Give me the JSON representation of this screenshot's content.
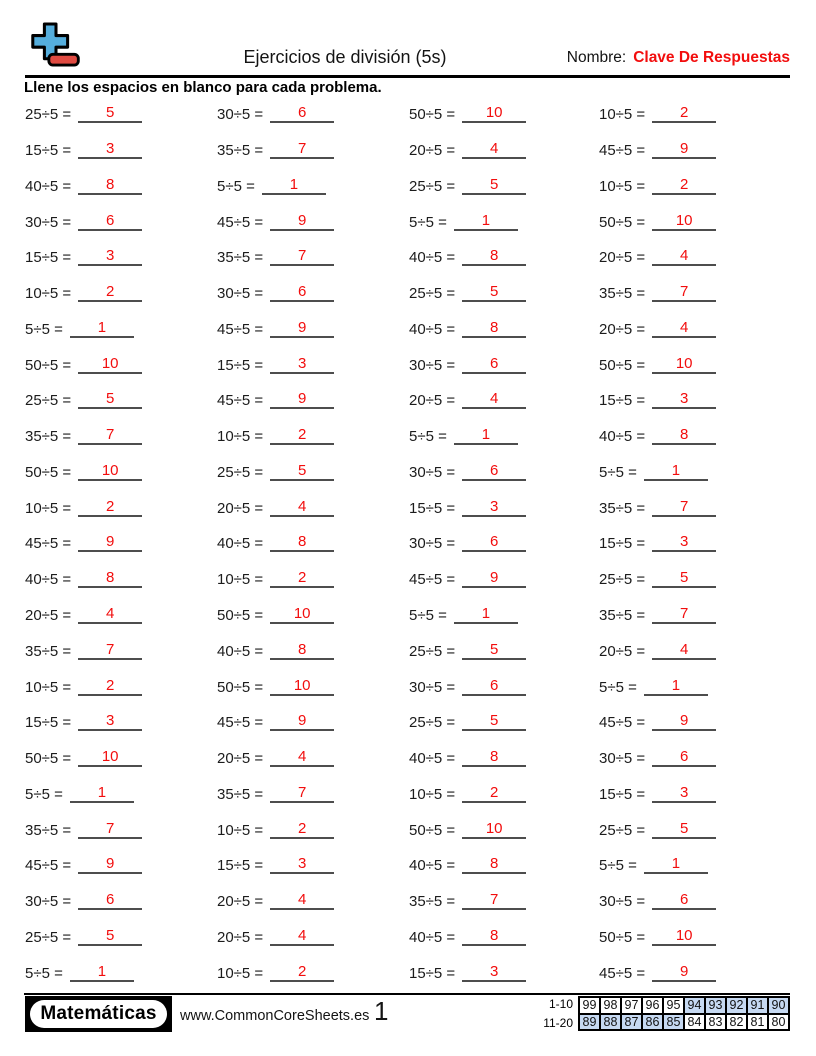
{
  "header": {
    "title": "Ejercicios de división (5s)",
    "name_label": "Nombre:",
    "name_value": "Clave De Respuestas",
    "instruction": "Llene los espacios en blanco para cada problema."
  },
  "problems": {
    "columns": [
      [
        [
          "25÷5 =",
          "5"
        ],
        [
          "15÷5 =",
          "3"
        ],
        [
          "40÷5 =",
          "8"
        ],
        [
          "30÷5 =",
          "6"
        ],
        [
          "15÷5 =",
          "3"
        ],
        [
          "10÷5 =",
          "2"
        ],
        [
          "5÷5 =",
          "1"
        ],
        [
          "50÷5 =",
          "10"
        ],
        [
          "25÷5 =",
          "5"
        ],
        [
          "35÷5 =",
          "7"
        ],
        [
          "50÷5 =",
          "10"
        ],
        [
          "10÷5 =",
          "2"
        ],
        [
          "45÷5 =",
          "9"
        ],
        [
          "40÷5 =",
          "8"
        ],
        [
          "20÷5 =",
          "4"
        ],
        [
          "35÷5 =",
          "7"
        ],
        [
          "10÷5 =",
          "2"
        ],
        [
          "15÷5 =",
          "3"
        ],
        [
          "50÷5 =",
          "10"
        ],
        [
          "5÷5 =",
          "1"
        ],
        [
          "35÷5 =",
          "7"
        ],
        [
          "45÷5 =",
          "9"
        ],
        [
          "30÷5 =",
          "6"
        ],
        [
          "25÷5 =",
          "5"
        ],
        [
          "5÷5 =",
          "1"
        ]
      ],
      [
        [
          "30÷5 =",
          "6"
        ],
        [
          "35÷5 =",
          "7"
        ],
        [
          "5÷5 =",
          "1"
        ],
        [
          "45÷5 =",
          "9"
        ],
        [
          "35÷5 =",
          "7"
        ],
        [
          "30÷5 =",
          "6"
        ],
        [
          "45÷5 =",
          "9"
        ],
        [
          "15÷5 =",
          "3"
        ],
        [
          "45÷5 =",
          "9"
        ],
        [
          "10÷5 =",
          "2"
        ],
        [
          "25÷5 =",
          "5"
        ],
        [
          "20÷5 =",
          "4"
        ],
        [
          "40÷5 =",
          "8"
        ],
        [
          "10÷5 =",
          "2"
        ],
        [
          "50÷5 =",
          "10"
        ],
        [
          "40÷5 =",
          "8"
        ],
        [
          "50÷5 =",
          "10"
        ],
        [
          "45÷5 =",
          "9"
        ],
        [
          "20÷5 =",
          "4"
        ],
        [
          "35÷5 =",
          "7"
        ],
        [
          "10÷5 =",
          "2"
        ],
        [
          "15÷5 =",
          "3"
        ],
        [
          "20÷5 =",
          "4"
        ],
        [
          "20÷5 =",
          "4"
        ],
        [
          "10÷5 =",
          "2"
        ]
      ],
      [
        [
          "50÷5 =",
          "10"
        ],
        [
          "20÷5 =",
          "4"
        ],
        [
          "25÷5 =",
          "5"
        ],
        [
          "5÷5 =",
          "1"
        ],
        [
          "40÷5 =",
          "8"
        ],
        [
          "25÷5 =",
          "5"
        ],
        [
          "40÷5 =",
          "8"
        ],
        [
          "30÷5 =",
          "6"
        ],
        [
          "20÷5 =",
          "4"
        ],
        [
          "5÷5 =",
          "1"
        ],
        [
          "30÷5 =",
          "6"
        ],
        [
          "15÷5 =",
          "3"
        ],
        [
          "30÷5 =",
          "6"
        ],
        [
          "45÷5 =",
          "9"
        ],
        [
          "5÷5 =",
          "1"
        ],
        [
          "25÷5 =",
          "5"
        ],
        [
          "30÷5 =",
          "6"
        ],
        [
          "25÷5 =",
          "5"
        ],
        [
          "40÷5 =",
          "8"
        ],
        [
          "10÷5 =",
          "2"
        ],
        [
          "50÷5 =",
          "10"
        ],
        [
          "40÷5 =",
          "8"
        ],
        [
          "35÷5 =",
          "7"
        ],
        [
          "40÷5 =",
          "8"
        ],
        [
          "15÷5 =",
          "3"
        ]
      ],
      [
        [
          "10÷5 =",
          "2"
        ],
        [
          "45÷5 =",
          "9"
        ],
        [
          "10÷5 =",
          "2"
        ],
        [
          "50÷5 =",
          "10"
        ],
        [
          "20÷5 =",
          "4"
        ],
        [
          "35÷5 =",
          "7"
        ],
        [
          "20÷5 =",
          "4"
        ],
        [
          "50÷5 =",
          "10"
        ],
        [
          "15÷5 =",
          "3"
        ],
        [
          "40÷5 =",
          "8"
        ],
        [
          "5÷5 =",
          "1"
        ],
        [
          "35÷5 =",
          "7"
        ],
        [
          "15÷5 =",
          "3"
        ],
        [
          "25÷5 =",
          "5"
        ],
        [
          "35÷5 =",
          "7"
        ],
        [
          "20÷5 =",
          "4"
        ],
        [
          "5÷5 =",
          "1"
        ],
        [
          "45÷5 =",
          "9"
        ],
        [
          "30÷5 =",
          "6"
        ],
        [
          "15÷5 =",
          "3"
        ],
        [
          "25÷5 =",
          "5"
        ],
        [
          "5÷5 =",
          "1"
        ],
        [
          "30÷5 =",
          "6"
        ],
        [
          "50÷5 =",
          "10"
        ],
        [
          "45÷5 =",
          "9"
        ]
      ]
    ]
  },
  "footer": {
    "brand": "Matemáticas",
    "website": "www.CommonCoreSheets.es",
    "page_number": "1",
    "score_table": {
      "rows": [
        {
          "label": "1-10",
          "cells": [
            {
              "v": "99",
              "hl": false
            },
            {
              "v": "98",
              "hl": false
            },
            {
              "v": "97",
              "hl": false
            },
            {
              "v": "96",
              "hl": false
            },
            {
              "v": "95",
              "hl": false
            },
            {
              "v": "94",
              "hl": true
            },
            {
              "v": "93",
              "hl": true
            },
            {
              "v": "92",
              "hl": true
            },
            {
              "v": "91",
              "hl": true
            },
            {
              "v": "90",
              "hl": true
            }
          ]
        },
        {
          "label": "11-20",
          "cells": [
            {
              "v": "89",
              "hl": true
            },
            {
              "v": "88",
              "hl": true
            },
            {
              "v": "87",
              "hl": true
            },
            {
              "v": "86",
              "hl": true
            },
            {
              "v": "85",
              "hl": true
            },
            {
              "v": "84",
              "hl": false
            },
            {
              "v": "83",
              "hl": false
            },
            {
              "v": "82",
              "hl": false
            },
            {
              "v": "81",
              "hl": false
            },
            {
              "v": "80",
              "hl": false
            }
          ]
        }
      ]
    }
  },
  "colors": {
    "answer_red": "#f20d0d",
    "name_red": "#f20d0d",
    "logo_blue": "#55aedd",
    "logo_red": "#e04b42",
    "table_highlight": "#c6d9f2"
  }
}
